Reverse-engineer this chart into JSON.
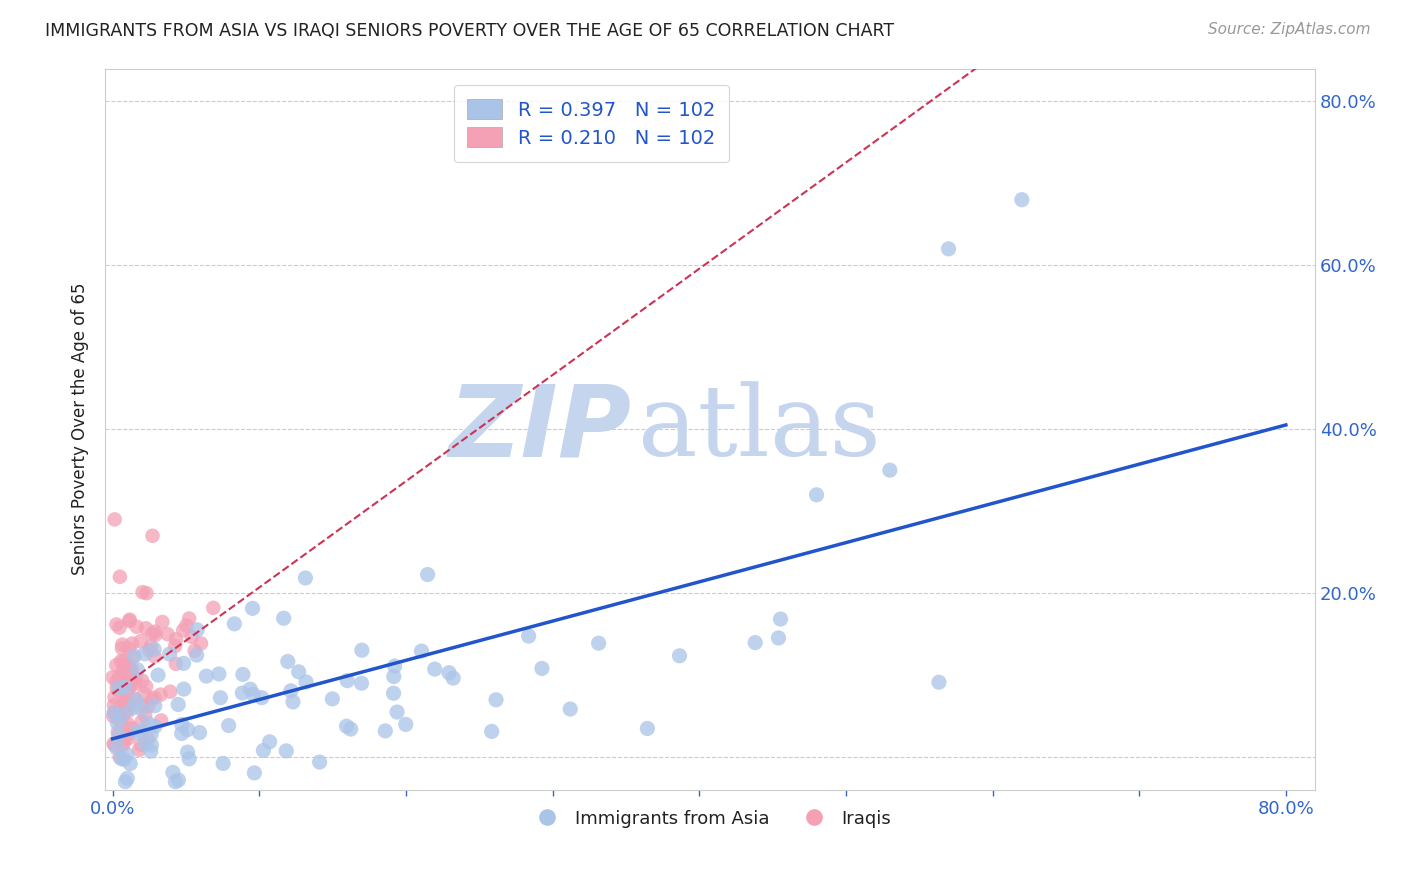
{
  "title": "IMMIGRANTS FROM ASIA VS IRAQI SENIORS POVERTY OVER THE AGE OF 65 CORRELATION CHART",
  "source": "Source: ZipAtlas.com",
  "xlabel": "",
  "ylabel": "Seniors Poverty Over the Age of 65",
  "xlim": [
    -0.005,
    0.82
  ],
  "ylim": [
    -0.04,
    0.84
  ],
  "xticks": [
    0.0,
    0.1,
    0.2,
    0.3,
    0.4,
    0.5,
    0.6,
    0.7,
    0.8
  ],
  "xticklabels": [
    "0.0%",
    "",
    "",
    "",
    "",
    "",
    "",
    "",
    "80.0%"
  ],
  "yticks": [
    0.0,
    0.2,
    0.4,
    0.6,
    0.8
  ],
  "yticklabels": [
    "",
    "20.0%",
    "40.0%",
    "60.0%",
    "80.0%"
  ],
  "blue_color": "#aac4e8",
  "pink_color": "#f4a0b5",
  "blue_line_color": "#2255cc",
  "pink_line_color": "#cc3355",
  "legend_R_blue": "R = 0.397",
  "legend_N_blue": "N = 102",
  "legend_R_pink": "R = 0.210",
  "legend_N_pink": "N = 102",
  "legend_label_blue": "Immigrants from Asia",
  "legend_label_pink": "Iraqis",
  "watermark_zip": "ZIP",
  "watermark_atlas": "atlas",
  "watermark_color_zip": "#c5d5ed",
  "watermark_color_atlas": "#c5d5ed",
  "grid_color": "#cccccc",
  "background_color": "#ffffff",
  "title_color": "#222222",
  "axis_label_color": "#222222",
  "tick_color": "#3366cc",
  "N": 102,
  "blue_seed": 42,
  "pink_seed": 7
}
